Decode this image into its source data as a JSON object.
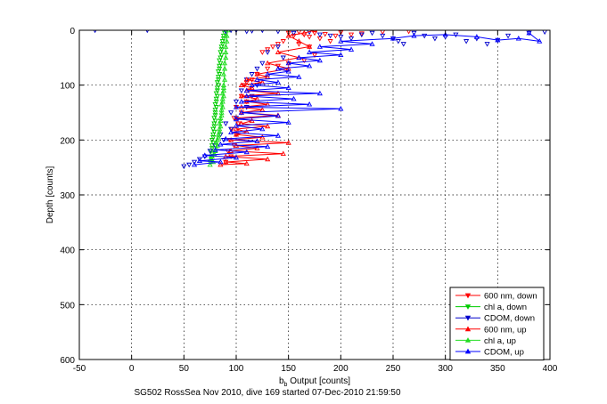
{
  "chart_data": {
    "type": "scatter",
    "title": "",
    "footer": "SG502 RossSea Nov 2010, dive 169 started 07-Dec-2010 21:59:50",
    "xlabel_main": "b",
    "xlabel_sub": "b",
    "xlabel_rest": " Output [counts]",
    "ylabel": "Depth [counts]",
    "xlim": [
      -50,
      400
    ],
    "ylim": [
      0,
      600
    ],
    "y_reversed": true,
    "xticks": [
      -50,
      0,
      50,
      100,
      150,
      200,
      250,
      300,
      350,
      400
    ],
    "yticks": [
      0,
      100,
      200,
      300,
      400,
      500,
      600
    ],
    "grid": true,
    "legend_position": "bottom-right",
    "series": [
      {
        "name": "600 nm, down",
        "color": "#ff0000",
        "marker": "triangle-down",
        "connected": false,
        "points": [
          [
            150,
            5
          ],
          [
            155,
            10
          ],
          [
            160,
            3
          ],
          [
            165,
            8
          ],
          [
            170,
            12
          ],
          [
            175,
            5
          ],
          [
            180,
            15
          ],
          [
            185,
            7
          ],
          [
            190,
            20
          ],
          [
            195,
            10
          ],
          [
            200,
            4
          ],
          [
            210,
            8
          ],
          [
            220,
            6
          ],
          [
            240,
            3
          ],
          [
            265,
            2
          ],
          [
            145,
            20
          ],
          [
            140,
            25
          ],
          [
            135,
            30
          ],
          [
            130,
            35
          ],
          [
            125,
            40
          ],
          [
            160,
            25
          ],
          [
            170,
            30
          ],
          [
            175,
            45
          ],
          [
            165,
            55
          ],
          [
            150,
            60
          ],
          [
            140,
            65
          ],
          [
            130,
            70
          ],
          [
            120,
            80
          ],
          [
            115,
            90
          ],
          [
            110,
            95
          ],
          [
            108,
            100
          ],
          [
            112,
            110
          ],
          [
            105,
            120
          ],
          [
            110,
            130
          ],
          [
            100,
            140
          ],
          [
            105,
            150
          ],
          [
            98,
            160
          ],
          [
            102,
            170
          ],
          [
            96,
            180
          ],
          [
            100,
            190
          ],
          [
            94,
            200
          ],
          [
            98,
            210
          ],
          [
            92,
            220
          ],
          [
            95,
            230
          ],
          [
            90,
            240
          ]
        ]
      },
      {
        "name": "chl a, down",
        "color": "#00cc00",
        "marker": "triangle-down",
        "connected": false,
        "points": [
          [
            90,
            0
          ],
          [
            89,
            5
          ],
          [
            88,
            10
          ],
          [
            88,
            15
          ],
          [
            87,
            20
          ],
          [
            87,
            25
          ],
          [
            86,
            30
          ],
          [
            86,
            35
          ],
          [
            85,
            40
          ],
          [
            86,
            45
          ],
          [
            85,
            50
          ],
          [
            84,
            55
          ],
          [
            85,
            60
          ],
          [
            84,
            65
          ],
          [
            84,
            70
          ],
          [
            83,
            75
          ],
          [
            84,
            80
          ],
          [
            83,
            85
          ],
          [
            83,
            90
          ],
          [
            82,
            95
          ],
          [
            83,
            100
          ],
          [
            82,
            105
          ],
          [
            82,
            110
          ],
          [
            81,
            115
          ],
          [
            82,
            120
          ],
          [
            81,
            125
          ],
          [
            81,
            130
          ],
          [
            80,
            135
          ],
          [
            81,
            140
          ],
          [
            80,
            145
          ],
          [
            80,
            150
          ],
          [
            80,
            155
          ],
          [
            79,
            160
          ],
          [
            80,
            165
          ],
          [
            79,
            170
          ],
          [
            79,
            175
          ],
          [
            78,
            180
          ],
          [
            79,
            185
          ],
          [
            78,
            190
          ],
          [
            78,
            195
          ],
          [
            77,
            200
          ],
          [
            78,
            205
          ],
          [
            77,
            210
          ],
          [
            77,
            215
          ],
          [
            76,
            220
          ],
          [
            77,
            225
          ],
          [
            76,
            230
          ],
          [
            76,
            235
          ],
          [
            75,
            240
          ]
        ]
      },
      {
        "name": "CDOM, down",
        "color": "#0000cc",
        "marker": "triangle-down",
        "connected": false,
        "points": [
          [
            -35,
            0
          ],
          [
            15,
            0
          ],
          [
            90,
            2
          ],
          [
            95,
            0
          ],
          [
            100,
            0
          ],
          [
            110,
            2
          ],
          [
            115,
            1
          ],
          [
            125,
            0
          ],
          [
            140,
            2
          ],
          [
            155,
            5
          ],
          [
            170,
            3
          ],
          [
            180,
            8
          ],
          [
            190,
            10
          ],
          [
            200,
            12
          ],
          [
            210,
            15
          ],
          [
            220,
            8
          ],
          [
            230,
            5
          ],
          [
            240,
            10
          ],
          [
            250,
            15
          ],
          [
            255,
            20
          ],
          [
            260,
            25
          ],
          [
            270,
            5
          ],
          [
            280,
            10
          ],
          [
            290,
            15
          ],
          [
            300,
            12
          ],
          [
            310,
            8
          ],
          [
            320,
            20
          ],
          [
            330,
            15
          ],
          [
            340,
            25
          ],
          [
            350,
            18
          ],
          [
            360,
            10
          ],
          [
            380,
            5
          ],
          [
            395,
            3
          ],
          [
            140,
            30
          ],
          [
            130,
            40
          ],
          [
            145,
            50
          ],
          [
            125,
            60
          ],
          [
            120,
            70
          ],
          [
            115,
            80
          ],
          [
            110,
            90
          ],
          [
            120,
            100
          ],
          [
            105,
            110
          ],
          [
            115,
            120
          ],
          [
            100,
            130
          ],
          [
            110,
            140
          ],
          [
            95,
            150
          ],
          [
            100,
            160
          ],
          [
            90,
            170
          ],
          [
            95,
            180
          ],
          [
            85,
            190
          ],
          [
            88,
            200
          ],
          [
            80,
            210
          ],
          [
            75,
            220
          ],
          [
            70,
            230
          ],
          [
            65,
            235
          ],
          [
            60,
            240
          ],
          [
            55,
            245
          ],
          [
            50,
            248
          ]
        ]
      },
      {
        "name": "600 nm, up",
        "color": "#ff0000",
        "marker": "triangle-up",
        "connected": true,
        "points": [
          [
            85,
            245
          ],
          [
            110,
            243
          ],
          [
            90,
            240
          ],
          [
            130,
            235
          ],
          [
            90,
            230
          ],
          [
            145,
            225
          ],
          [
            95,
            220
          ],
          [
            120,
            215
          ],
          [
            100,
            210
          ],
          [
            150,
            205
          ],
          [
            95,
            200
          ],
          [
            125,
            195
          ],
          [
            100,
            190
          ],
          [
            110,
            185
          ],
          [
            100,
            180
          ],
          [
            130,
            175
          ],
          [
            105,
            170
          ],
          [
            115,
            165
          ],
          [
            100,
            160
          ],
          [
            140,
            155
          ],
          [
            105,
            150
          ],
          [
            125,
            145
          ],
          [
            105,
            140
          ],
          [
            130,
            135
          ],
          [
            110,
            130
          ],
          [
            120,
            125
          ],
          [
            105,
            120
          ],
          [
            140,
            115
          ],
          [
            110,
            110
          ],
          [
            115,
            105
          ],
          [
            105,
            100
          ],
          [
            125,
            95
          ],
          [
            110,
            90
          ],
          [
            130,
            85
          ],
          [
            120,
            80
          ],
          [
            150,
            70
          ],
          [
            130,
            60
          ],
          [
            160,
            50
          ],
          [
            140,
            40
          ],
          [
            170,
            30
          ],
          [
            160,
            20
          ],
          [
            150,
            10
          ],
          [
            165,
            5
          ],
          [
            175,
            0
          ]
        ]
      },
      {
        "name": "chl a, up",
        "color": "#22dd22",
        "marker": "triangle-up",
        "connected": true,
        "points": [
          [
            75,
            245
          ],
          [
            78,
            240
          ],
          [
            76,
            235
          ],
          [
            77,
            230
          ],
          [
            79,
            225
          ],
          [
            80,
            220
          ],
          [
            81,
            215
          ],
          [
            82,
            210
          ],
          [
            81,
            205
          ],
          [
            82,
            200
          ],
          [
            83,
            195
          ],
          [
            83,
            190
          ],
          [
            84,
            185
          ],
          [
            84,
            180
          ],
          [
            85,
            175
          ],
          [
            84,
            170
          ],
          [
            85,
            165
          ],
          [
            85,
            160
          ],
          [
            86,
            155
          ],
          [
            86,
            150
          ],
          [
            86,
            145
          ],
          [
            87,
            140
          ],
          [
            86,
            135
          ],
          [
            87,
            130
          ],
          [
            87,
            125
          ],
          [
            88,
            120
          ],
          [
            87,
            115
          ],
          [
            88,
            110
          ],
          [
            88,
            105
          ],
          [
            88,
            100
          ],
          [
            89,
            90
          ],
          [
            88,
            80
          ],
          [
            89,
            70
          ],
          [
            89,
            60
          ],
          [
            90,
            50
          ],
          [
            90,
            40
          ],
          [
            90,
            30
          ],
          [
            91,
            20
          ],
          [
            91,
            10
          ],
          [
            92,
            0
          ]
        ]
      },
      {
        "name": "CDOM, up",
        "color": "#0000ff",
        "marker": "triangle-up",
        "connected": true,
        "points": [
          [
            60,
            245
          ],
          [
            85,
            240
          ],
          [
            65,
            238
          ],
          [
            100,
            232
          ],
          [
            70,
            228
          ],
          [
            110,
            222
          ],
          [
            80,
            218
          ],
          [
            130,
            212
          ],
          [
            85,
            208
          ],
          [
            120,
            202
          ],
          [
            90,
            198
          ],
          [
            140,
            192
          ],
          [
            95,
            186
          ],
          [
            125,
            180
          ],
          [
            100,
            174
          ],
          [
            150,
            168
          ],
          [
            100,
            162
          ],
          [
            140,
            156
          ],
          [
            105,
            150
          ],
          [
            200,
            143
          ],
          [
            100,
            140
          ],
          [
            170,
            135
          ],
          [
            105,
            130
          ],
          [
            155,
            125
          ],
          [
            110,
            120
          ],
          [
            180,
            115
          ],
          [
            110,
            110
          ],
          [
            150,
            105
          ],
          [
            115,
            100
          ],
          [
            140,
            95
          ],
          [
            120,
            90
          ],
          [
            160,
            85
          ],
          [
            130,
            80
          ],
          [
            150,
            75
          ],
          [
            140,
            70
          ],
          [
            170,
            65
          ],
          [
            150,
            60
          ],
          [
            180,
            55
          ],
          [
            160,
            50
          ],
          [
            200,
            45
          ],
          [
            170,
            40
          ],
          [
            210,
            35
          ],
          [
            180,
            30
          ],
          [
            230,
            25
          ],
          [
            200,
            20
          ],
          [
            250,
            15
          ],
          [
            270,
            10
          ],
          [
            300,
            8
          ],
          [
            330,
            12
          ],
          [
            350,
            18
          ],
          [
            370,
            15
          ],
          [
            390,
            20
          ],
          [
            380,
            5
          ]
        ]
      }
    ]
  }
}
